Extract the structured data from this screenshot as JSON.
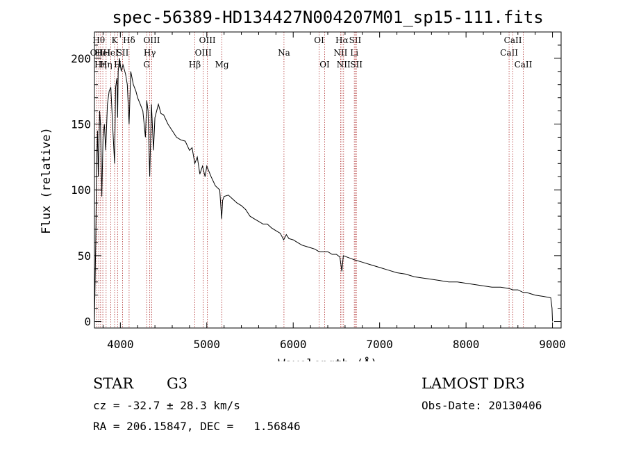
{
  "chart_data": {
    "type": "line",
    "title": "spec-56389-HD134427N004207M01_sp15-111.fits",
    "xlabel": "Wavelength (Å)",
    "ylabel": "Flux (relative)",
    "xlim": [
      3700,
      9100
    ],
    "ylim": [
      -5,
      220
    ],
    "xticks": [
      4000,
      5000,
      6000,
      7000,
      8000,
      9000
    ],
    "yticks": [
      0,
      50,
      100,
      150,
      200
    ],
    "grid": false,
    "series": [
      {
        "name": "flux",
        "x": [
          3700,
          3715,
          3725,
          3735,
          3745,
          3760,
          3770,
          3785,
          3800,
          3815,
          3830,
          3850,
          3870,
          3890,
          3910,
          3933,
          3945,
          3960,
          3968,
          3975,
          3990,
          4010,
          4030,
          4060,
          4080,
          4101,
          4120,
          4150,
          4180,
          4200,
          4230,
          4260,
          4290,
          4305,
          4320,
          4340,
          4360,
          4383,
          4400,
          4440,
          4470,
          4500,
          4550,
          4600,
          4650,
          4700,
          4750,
          4800,
          4830,
          4861,
          4890,
          4920,
          4950,
          4980,
          5000,
          5050,
          5100,
          5150,
          5172,
          5183,
          5200,
          5250,
          5300,
          5350,
          5400,
          5450,
          5500,
          5550,
          5600,
          5650,
          5700,
          5750,
          5800,
          5850,
          5890,
          5920,
          5950,
          6000,
          6050,
          6100,
          6150,
          6200,
          6250,
          6300,
          6350,
          6400,
          6450,
          6500,
          6540,
          6563,
          6580,
          6620,
          6700,
          6800,
          6900,
          7000,
          7100,
          7200,
          7300,
          7400,
          7500,
          7600,
          7700,
          7800,
          7900,
          8000,
          8100,
          8200,
          8300,
          8400,
          8498,
          8542,
          8600,
          8662,
          8700,
          8800,
          8900,
          8980,
          8995,
          9000
        ],
        "y": [
          0,
          60,
          120,
          145,
          110,
          160,
          150,
          95,
          140,
          150,
          130,
          165,
          175,
          178,
          150,
          120,
          178,
          185,
          155,
          190,
          200,
          190,
          195,
          188,
          180,
          150,
          190,
          180,
          175,
          170,
          165,
          160,
          140,
          168,
          160,
          110,
          165,
          130,
          155,
          165,
          158,
          157,
          150,
          145,
          140,
          138,
          137,
          130,
          132,
          120,
          125,
          112,
          118,
          110,
          118,
          110,
          103,
          100,
          78,
          92,
          95,
          96,
          93,
          90,
          88,
          85,
          80,
          78,
          76,
          74,
          74,
          71,
          69,
          67,
          62,
          66,
          63,
          62,
          60,
          58,
          57,
          56,
          55,
          53,
          53,
          53,
          51,
          51,
          49,
          38,
          50,
          49,
          47,
          45,
          43,
          41,
          39,
          37,
          36,
          34,
          33,
          32,
          31,
          30,
          30,
          29,
          28,
          27,
          26,
          26,
          25,
          24,
          24,
          22,
          22,
          20,
          19,
          18,
          10,
          0
        ]
      }
    ],
    "lines": [
      {
        "wl": 3726,
        "row": 1,
        "label": "OII"
      },
      {
        "wl": 3750,
        "row": 0,
        "label": "Hθ"
      },
      {
        "wl": 3771,
        "row": 2,
        "label": "Hη"
      },
      {
        "wl": 3797,
        "row": 1,
        "label": "HeI"
      },
      {
        "wl": 3835,
        "row": 2,
        "label": "Hη"
      },
      {
        "wl": 3889,
        "row": 1,
        "label": "HeI"
      },
      {
        "wl": 3933,
        "row": 0,
        "label": "K"
      },
      {
        "wl": 3968,
        "row": 2,
        "label": "H"
      },
      {
        "wl": 4026,
        "row": 1,
        "label": "SII"
      },
      {
        "wl": 4101,
        "row": 0,
        "label": "Hδ"
      },
      {
        "wl": 4304,
        "row": 2,
        "label": "G"
      },
      {
        "wl": 4340,
        "row": 1,
        "label": "Hγ"
      },
      {
        "wl": 4363,
        "row": 0,
        "label": "OIII"
      },
      {
        "wl": 4861,
        "row": 2,
        "label": "Hβ"
      },
      {
        "wl": 4959,
        "row": 1,
        "label": "OIII"
      },
      {
        "wl": 5007,
        "row": 0,
        "label": "OIII"
      },
      {
        "wl": 5175,
        "row": 2,
        "label": "Mg"
      },
      {
        "wl": 5893,
        "row": 1,
        "label": "Na"
      },
      {
        "wl": 6300,
        "row": 0,
        "label": "OI"
      },
      {
        "wl": 6364,
        "row": 2,
        "label": "OI"
      },
      {
        "wl": 6548,
        "row": 1,
        "label": "NII"
      },
      {
        "wl": 6563,
        "row": 0,
        "label": "Hα"
      },
      {
        "wl": 6583,
        "row": 2,
        "label": "NII"
      },
      {
        "wl": 6707,
        "row": 1,
        "label": "Li"
      },
      {
        "wl": 6717,
        "row": 0,
        "label": "SII"
      },
      {
        "wl": 6731,
        "row": 2,
        "label": "SII"
      },
      {
        "wl": 8498,
        "row": 1,
        "label": "CaII"
      },
      {
        "wl": 8542,
        "row": 0,
        "label": "CaII"
      },
      {
        "wl": 8662,
        "row": 2,
        "label": "CaII"
      }
    ]
  },
  "footer": {
    "object_class": "STAR",
    "subclass": "G3",
    "survey": "LAMOST DR3",
    "redshift": "cz = -32.7 ± 28.3 km/s",
    "obs_date": "Obs-Date: 20130406",
    "coords": "RA = 206.15847, DEC =   1.56846"
  }
}
